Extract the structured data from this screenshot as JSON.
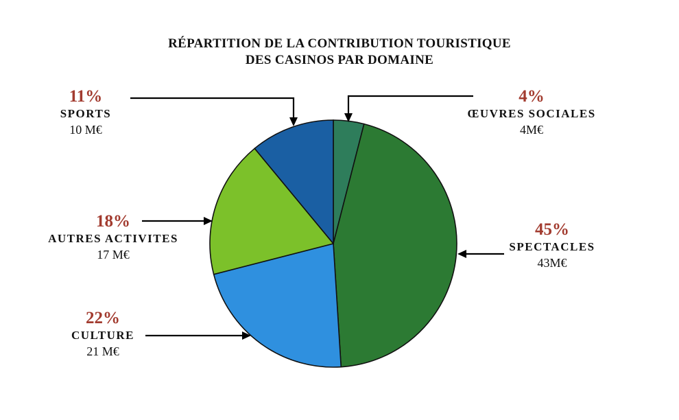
{
  "chart_data": {
    "type": "pie",
    "title": "RÉPARTITION DE LA CONTRIBUTION TOURISTIQUE",
    "subtitle": "DES CASINOS PAR DOMAINE",
    "slices": [
      {
        "key": "oeuvres",
        "label": "ŒUVRES SOCIALES",
        "percent": "4%",
        "value": 4,
        "amount": "4M€",
        "color": "#2e7d5b"
      },
      {
        "key": "spectacles",
        "label": "SPECTACLES",
        "percent": "45%",
        "value": 45,
        "amount": "43M€",
        "color": "#2c7a33"
      },
      {
        "key": "culture",
        "label": "CULTURE",
        "percent": "22%",
        "value": 22,
        "amount": "21 M€",
        "color": "#2f90df"
      },
      {
        "key": "autres",
        "label": "AUTRES ACTIVITES",
        "percent": "18%",
        "value": 18,
        "amount": "17 M€",
        "color": "#7cc12a"
      },
      {
        "key": "sports",
        "label": "SPORTS",
        "percent": "11%",
        "value": 11,
        "amount": "10 M€",
        "color": "#1a5fa3"
      }
    ],
    "start_angle": "12 o'clock",
    "direction": "clockwise"
  }
}
